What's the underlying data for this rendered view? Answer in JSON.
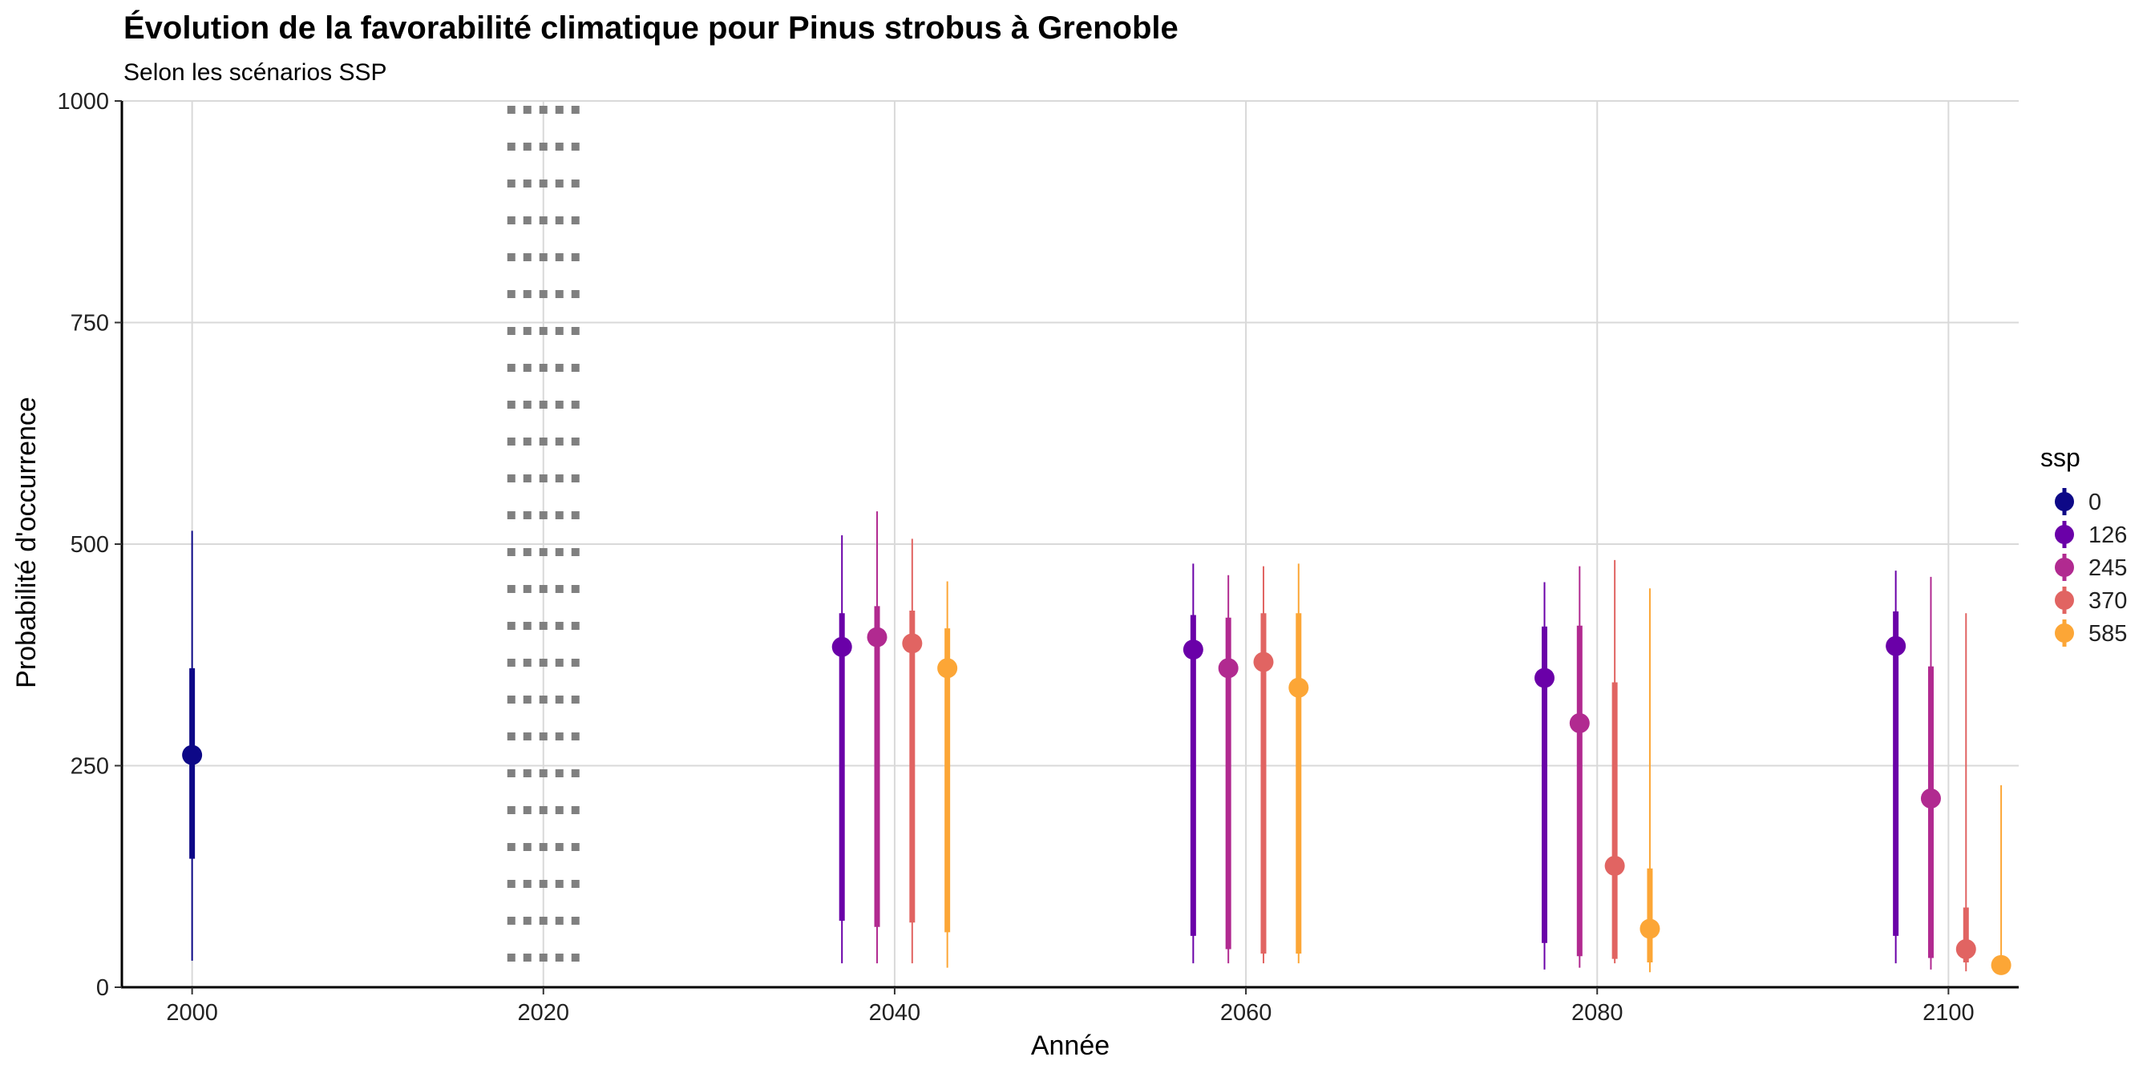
{
  "chart_data": {
    "type": "scatter",
    "title": "Évolution de la favorabilité climatique pour Pinus strobus à Grenoble",
    "subtitle": "Selon les scénarios SSP",
    "xlabel": "Année",
    "ylabel": "Probabilité d'occurrence",
    "xlim": [
      1996,
      2104
    ],
    "ylim": [
      0,
      1000
    ],
    "x_ticks": [
      2000,
      2020,
      2040,
      2060,
      2080,
      2100
    ],
    "x_tick_labels": [
      "2000",
      "2020",
      "2040",
      "2060",
      "2080",
      "2100"
    ],
    "y_ticks": [
      0,
      250,
      500,
      750,
      1000
    ],
    "y_tick_labels": [
      "0",
      "250",
      "500",
      "750",
      "1000"
    ],
    "grid": true,
    "reference_line": {
      "x": 2020,
      "style": "dotted",
      "color": "#808080"
    },
    "legend": {
      "title": "ssp",
      "position": "right",
      "entries": [
        {
          "label": "0",
          "color": "#0d0887"
        },
        {
          "label": "126",
          "color": "#6a00a8"
        },
        {
          "label": "245",
          "color": "#b12a90"
        },
        {
          "label": "370",
          "color": "#e16462"
        },
        {
          "label": "585",
          "color": "#fca636"
        }
      ]
    },
    "series": [
      {
        "name": "0",
        "color": "#0d0887",
        "points": [
          {
            "x": 2000,
            "y": 262,
            "inner": [
              145,
              360
            ],
            "outer": [
              30,
              515
            ]
          }
        ]
      },
      {
        "name": "126",
        "color": "#6a00a8",
        "points": [
          {
            "x": 2037,
            "y": 384,
            "inner": [
              75,
              422
            ],
            "outer": [
              27,
              510
            ]
          },
          {
            "x": 2057,
            "y": 381,
            "inner": [
              58,
              420
            ],
            "outer": [
              27,
              478
            ]
          },
          {
            "x": 2077,
            "y": 349,
            "inner": [
              50,
              407
            ],
            "outer": [
              20,
              457
            ]
          },
          {
            "x": 2097,
            "y": 385,
            "inner": [
              58,
              424
            ],
            "outer": [
              27,
              470
            ]
          }
        ]
      },
      {
        "name": "245",
        "color": "#b12a90",
        "points": [
          {
            "x": 2039,
            "y": 395,
            "inner": [
              68,
              430
            ],
            "outer": [
              27,
              537
            ]
          },
          {
            "x": 2059,
            "y": 360,
            "inner": [
              43,
              417
            ],
            "outer": [
              27,
              465
            ]
          },
          {
            "x": 2079,
            "y": 298,
            "inner": [
              35,
              408
            ],
            "outer": [
              22,
              475
            ]
          },
          {
            "x": 2099,
            "y": 213,
            "inner": [
              33,
              362
            ],
            "outer": [
              20,
              463
            ]
          }
        ]
      },
      {
        "name": "370",
        "color": "#e16462",
        "points": [
          {
            "x": 2041,
            "y": 388,
            "inner": [
              73,
              425
            ],
            "outer": [
              27,
              506
            ]
          },
          {
            "x": 2061,
            "y": 367,
            "inner": [
              38,
              422
            ],
            "outer": [
              27,
              475
            ]
          },
          {
            "x": 2081,
            "y": 137,
            "inner": [
              32,
              344
            ],
            "outer": [
              27,
              482
            ]
          },
          {
            "x": 2101,
            "y": 43,
            "inner": [
              28,
              90
            ],
            "outer": [
              18,
              422
            ]
          }
        ]
      },
      {
        "name": "585",
        "color": "#fca636",
        "points": [
          {
            "x": 2043,
            "y": 360,
            "inner": [
              62,
              405
            ],
            "outer": [
              22,
              458
            ]
          },
          {
            "x": 2063,
            "y": 338,
            "inner": [
              38,
              422
            ],
            "outer": [
              27,
              478
            ]
          },
          {
            "x": 2083,
            "y": 66,
            "inner": [
              28,
              134
            ],
            "outer": [
              17,
              450
            ]
          },
          {
            "x": 2103,
            "y": 25,
            "inner": [
              20,
              35
            ],
            "outer": [
              15,
              228
            ]
          }
        ]
      }
    ]
  }
}
